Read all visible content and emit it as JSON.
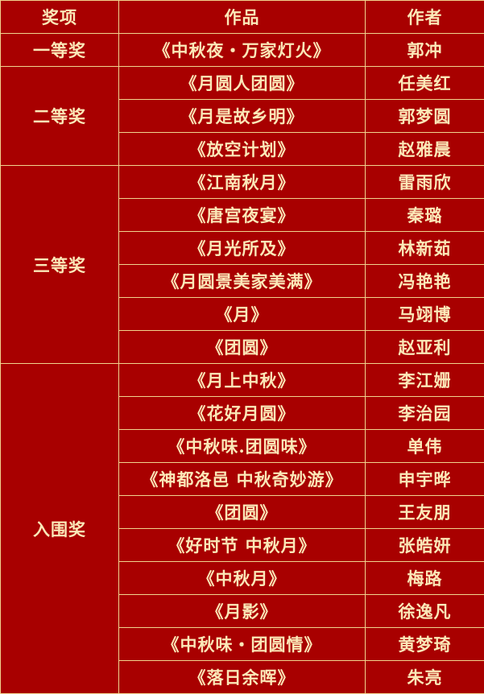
{
  "header": {
    "award": "奖项",
    "work": "作品",
    "author": "作者"
  },
  "groups": [
    {
      "award": "一等奖",
      "rows": [
        {
          "work": "《中秋夜・万家灯火》",
          "author": "郭冲"
        }
      ]
    },
    {
      "award": "二等奖",
      "rows": [
        {
          "work": "《月圆人团圆》",
          "author": "任美红"
        },
        {
          "work": "《月是故乡明》",
          "author": "郭梦圆"
        },
        {
          "work": "《放空计划》",
          "author": "赵雅晨"
        }
      ]
    },
    {
      "award": "三等奖",
      "rows": [
        {
          "work": "《江南秋月》",
          "author": "雷雨欣"
        },
        {
          "work": "《唐宫夜宴》",
          "author": "秦璐"
        },
        {
          "work": "《月光所及》",
          "author": "林新茹"
        },
        {
          "work": "《月圆景美家美满》",
          "author": "冯艳艳"
        },
        {
          "work": "《月》",
          "author": "马翊博"
        },
        {
          "work": "《团圆》",
          "author": "赵亚利"
        }
      ]
    },
    {
      "award": "入围奖",
      "rows": [
        {
          "work": "《月上中秋》",
          "author": "李江姗"
        },
        {
          "work": "《花好月圆》",
          "author": "李治园"
        },
        {
          "work": "《中秋味.团圆味》",
          "author": "单伟"
        },
        {
          "work": "《神都洛邑  中秋奇妙游》",
          "author": "申宇晔"
        },
        {
          "work": "《团圆》",
          "author": "王友朋"
        },
        {
          "work": "《好时节  中秋月》",
          "author": "张皓妍"
        },
        {
          "work": "《中秋月》",
          "author": "梅路"
        },
        {
          "work": "《月影》",
          "author": "徐逸凡"
        },
        {
          "work": "《中秋味・团圆情》",
          "author": "黄梦琦"
        },
        {
          "work": "《落日余晖》",
          "author": "朱亮"
        }
      ]
    }
  ],
  "colors": {
    "background": "#a80000",
    "text": "#fbe8b8",
    "border": "#f0d38e"
  }
}
